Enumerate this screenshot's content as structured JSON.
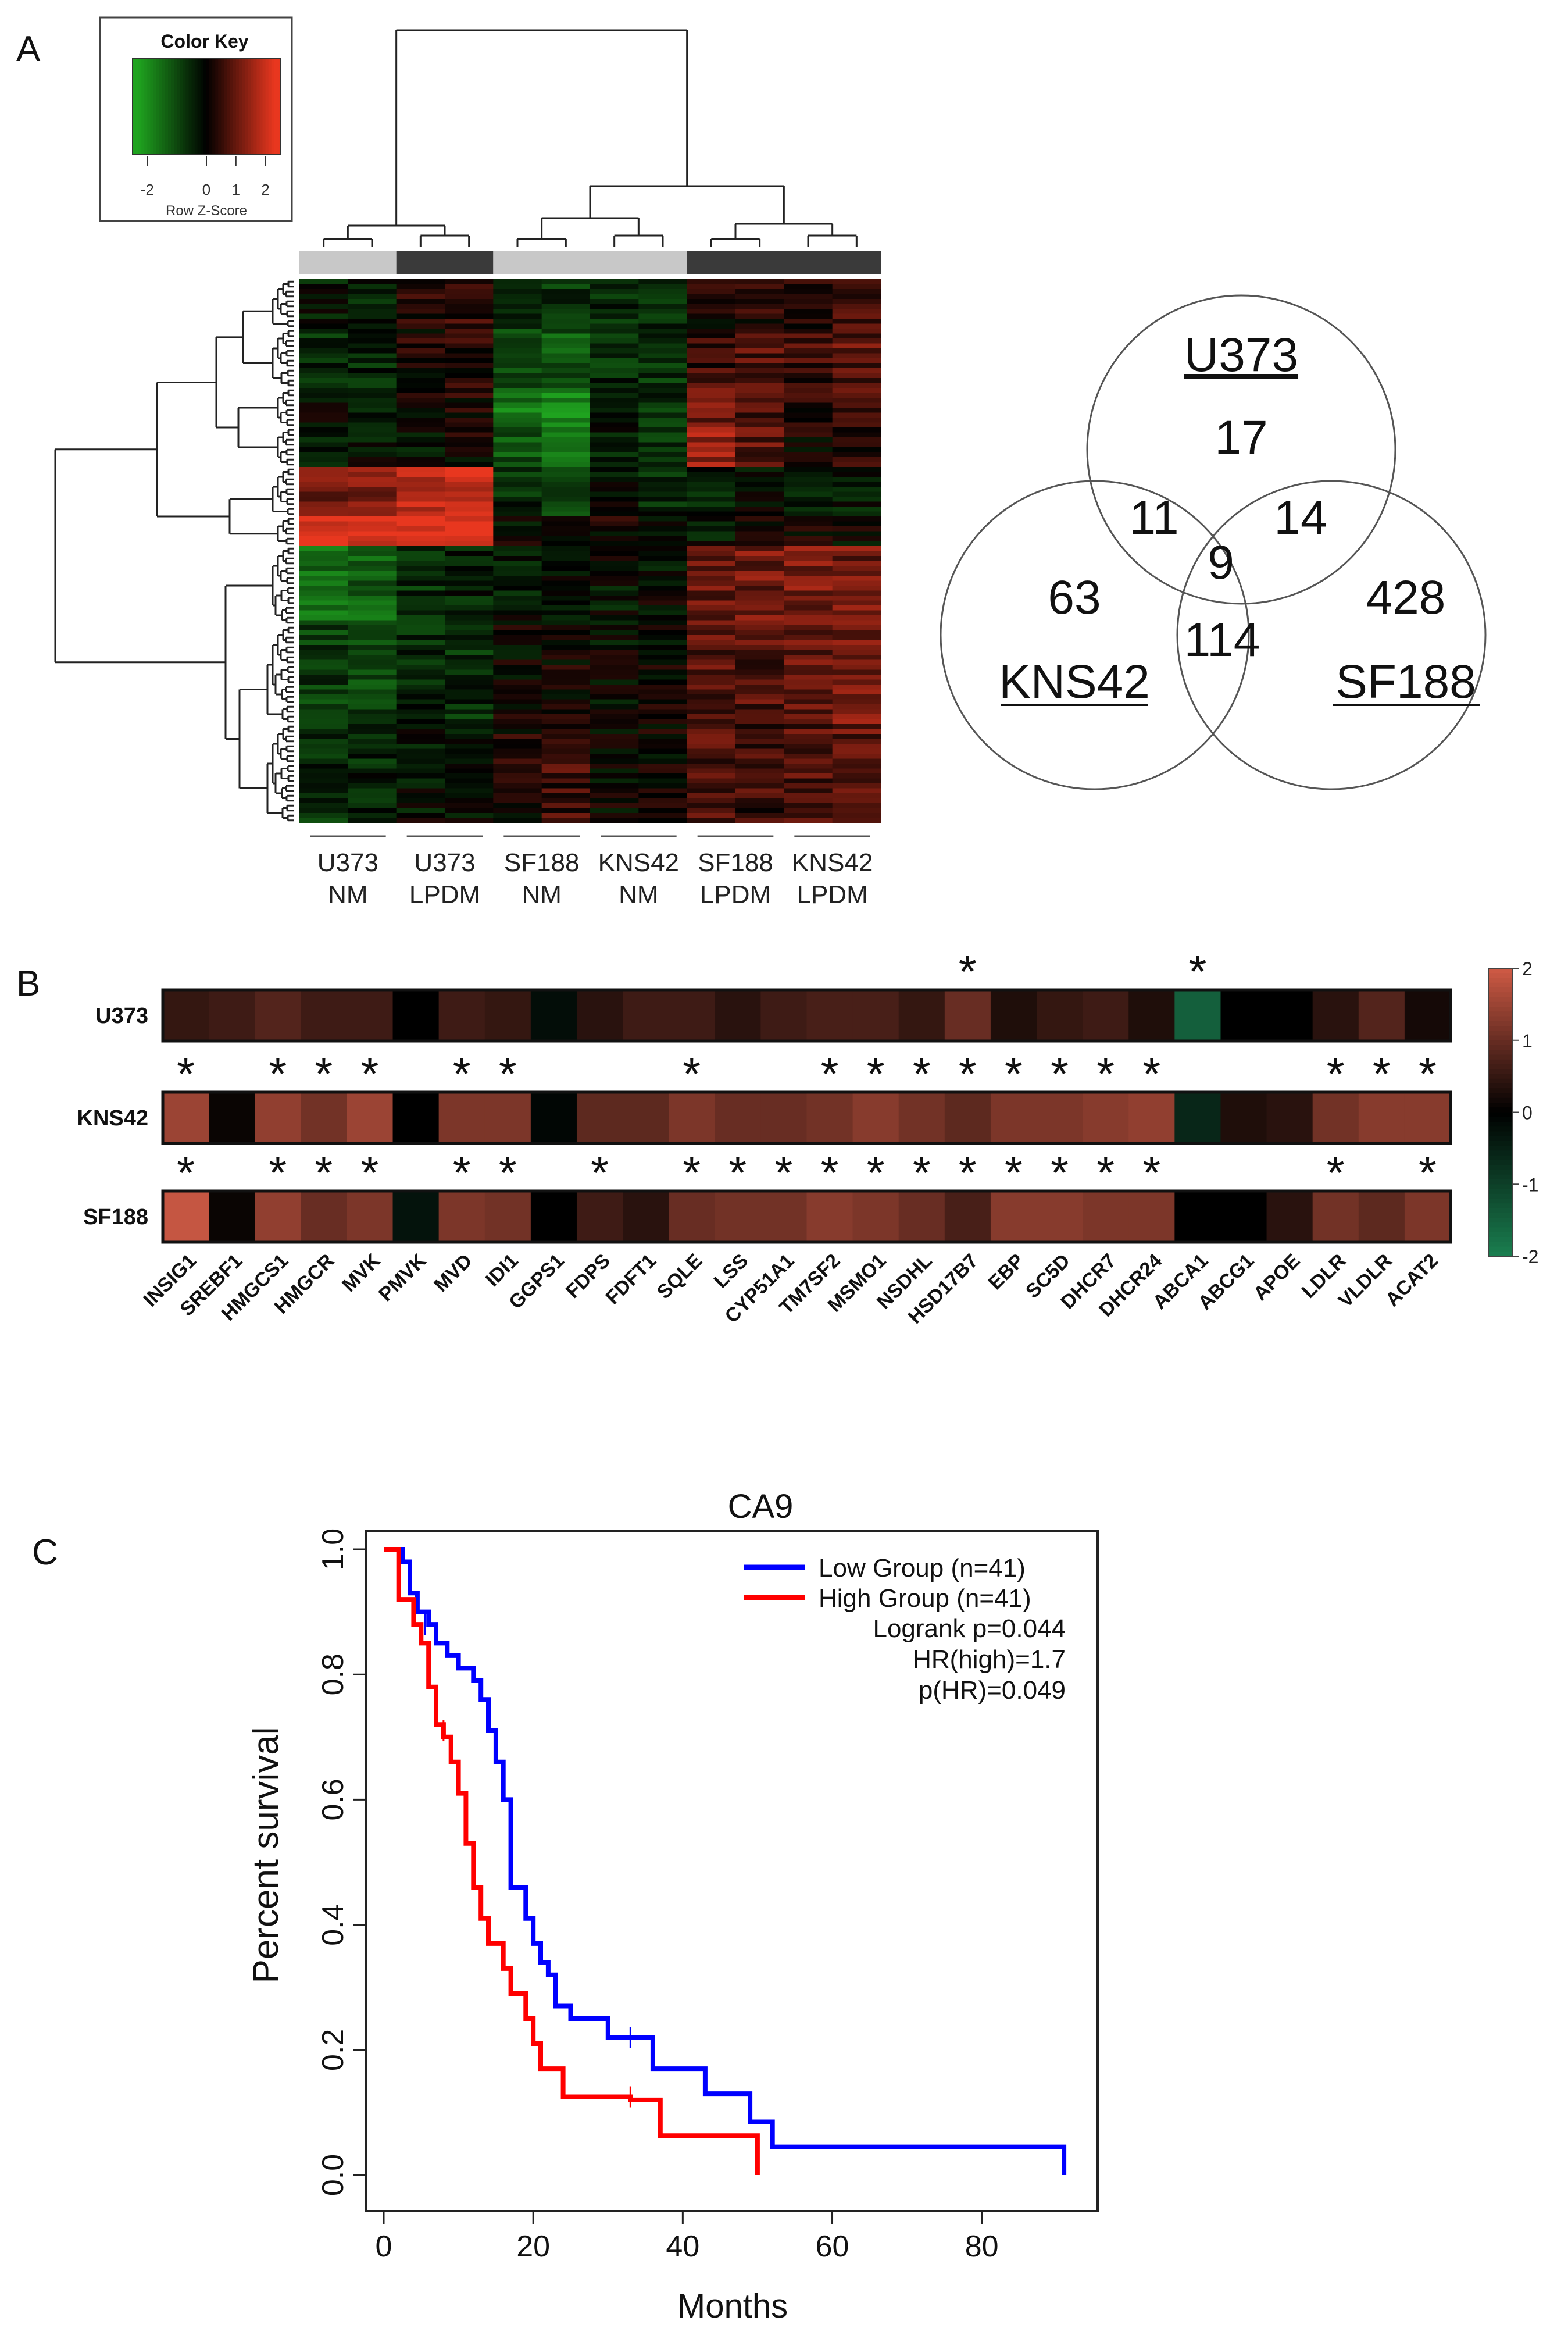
{
  "figure": {
    "panel_labels": {
      "a": "A",
      "b": "B",
      "c": "C"
    }
  },
  "colors": {
    "green": "#1fa31f",
    "black": "#000000",
    "red": "#e8371f",
    "mapLow": "#1a7f50",
    "mapMid": "#000000",
    "mapHigh": "#cf5a45",
    "lowGroup": "#0000ff",
    "highGroup": "#ff0000",
    "barLight": "#c8c8c8",
    "barDark": "#3a3a3a"
  },
  "chart_data": [
    {
      "id": "heatmap",
      "type": "heatmap",
      "title": "",
      "color_key": {
        "title": "Color Key",
        "xlabel": "Row Z-Score",
        "ticks": [
          "-2",
          "0",
          "1",
          "2"
        ],
        "tick_values": [
          -2,
          0,
          1,
          2
        ],
        "range": [
          -2.5,
          2.5
        ]
      },
      "columns": 12,
      "rows": 110,
      "groups": [
        {
          "line1": "U373",
          "line2": "NM",
          "columns": 2,
          "bar": "light"
        },
        {
          "line1": "U373",
          "line2": "LPDM",
          "columns": 2,
          "bar": "dark"
        },
        {
          "line1": "SF188",
          "line2": "NM",
          "columns": 2,
          "bar": "light"
        },
        {
          "line1": "KNS42",
          "line2": "NM",
          "columns": 2,
          "bar": "light"
        },
        {
          "line1": "SF188",
          "line2": "LPDM",
          "columns": 2,
          "bar": "dark"
        },
        {
          "line1": "KNS42",
          "line2": "LPDM",
          "columns": 2,
          "bar": "dark"
        }
      ],
      "row_clusters": [
        {
          "rows": 10,
          "means": [
            -0.3,
            -0.4,
            0.3,
            0.5,
            -0.8,
            -0.7,
            -0.5,
            -0.6,
            0.2,
            0.4,
            0.5,
            0.6
          ]
        },
        {
          "rows": 12,
          "means": [
            -0.6,
            -0.5,
            0.2,
            0.3,
            -1.0,
            -1.2,
            -0.6,
            -0.7,
            0.5,
            0.8,
            0.6,
            0.9
          ]
        },
        {
          "rows": 8,
          "means": [
            -0.2,
            -0.3,
            0.0,
            0.2,
            -1.6,
            -1.8,
            -0.4,
            -0.6,
            1.1,
            0.7,
            0.3,
            0.6
          ]
        },
        {
          "rows": 8,
          "means": [
            -0.4,
            -0.2,
            -0.2,
            0.1,
            -1.2,
            -1.4,
            -0.3,
            -0.8,
            1.5,
            0.9,
            0.1,
            0.4
          ]
        },
        {
          "rows": 10,
          "means": [
            1.1,
            1.3,
            1.8,
            2.0,
            -0.6,
            -0.8,
            -0.3,
            -0.5,
            -0.4,
            -0.2,
            -0.5,
            -0.3
          ]
        },
        {
          "rows": 6,
          "means": [
            2.2,
            2.3,
            2.4,
            2.5,
            -0.1,
            0.0,
            0.1,
            -0.2,
            -0.2,
            0.0,
            0.1,
            0.0
          ]
        },
        {
          "rows": 16,
          "means": [
            -1.5,
            -1.3,
            -0.6,
            -0.4,
            -0.3,
            -0.2,
            -0.2,
            -0.1,
            1.0,
            1.1,
            1.2,
            1.1
          ]
        },
        {
          "rows": 20,
          "means": [
            -0.8,
            -0.9,
            -0.5,
            -0.6,
            0.0,
            0.1,
            -0.1,
            0.0,
            0.9,
            0.8,
            1.0,
            1.2
          ]
        },
        {
          "rows": 20,
          "means": [
            -0.6,
            -0.5,
            -0.2,
            -0.3,
            0.2,
            0.6,
            0.0,
            0.1,
            0.7,
            0.6,
            0.8,
            0.9
          ]
        }
      ]
    },
    {
      "id": "venn",
      "type": "venn",
      "sets": [
        {
          "name": "U373",
          "only": 17
        },
        {
          "name": "KNS42",
          "only": 63
        },
        {
          "name": "SF188",
          "only": 428
        }
      ],
      "intersections": [
        {
          "sets": [
            "U373",
            "KNS42"
          ],
          "value": 11
        },
        {
          "sets": [
            "U373",
            "SF188"
          ],
          "value": 14
        },
        {
          "sets": [
            "U373",
            "KNS42",
            "SF188"
          ],
          "value": 9
        },
        {
          "sets": [
            "KNS42",
            "SF188"
          ],
          "value": 114
        }
      ]
    },
    {
      "id": "expression",
      "type": "heatmap",
      "value_range": [
        -2,
        2
      ],
      "legend_ticks": [
        "2",
        "1",
        "0",
        "-1",
        "-2"
      ],
      "legend_values": [
        2,
        1,
        0,
        -1,
        -2
      ],
      "genes": [
        "INSIG1",
        "SREBF1",
        "HMGCS1",
        "HMGCR",
        "MVK",
        "PMVK",
        "MVD",
        "IDI1",
        "GGPS1",
        "FDPS",
        "FDFT1",
        "SQLE",
        "LSS",
        "CYP51A1",
        "TM7SF2",
        "MSMO1",
        "NSDHL",
        "HSD17B7",
        "EBP",
        "SC5D",
        "DHCR7",
        "DHCR24",
        "ABCA1",
        "ABCG1",
        "APOE",
        "LDLR",
        "VLDLR",
        "ACAT2"
      ],
      "rows": [
        {
          "name": "U373",
          "values": [
            0.5,
            0.6,
            0.8,
            0.6,
            0.6,
            0.0,
            0.6,
            0.5,
            -0.2,
            0.4,
            0.6,
            0.6,
            0.4,
            0.6,
            0.7,
            0.7,
            0.5,
            1.0,
            0.3,
            0.5,
            0.6,
            0.3,
            -1.5,
            0.0,
            0.0,
            0.4,
            0.8,
            0.2
          ],
          "sig": [
            18,
            23
          ]
        },
        {
          "name": "KNS42",
          "values": [
            1.5,
            0.1,
            1.4,
            1.1,
            1.5,
            0.0,
            1.2,
            1.2,
            -0.1,
            0.9,
            0.9,
            1.2,
            1.0,
            1.0,
            1.1,
            1.3,
            1.1,
            0.9,
            1.2,
            1.2,
            1.3,
            1.4,
            -0.6,
            0.3,
            0.4,
            1.1,
            1.3,
            1.3
          ],
          "sig": [
            1,
            3,
            4,
            5,
            7,
            8,
            12,
            15,
            16,
            17,
            18,
            19,
            20,
            21,
            22,
            26,
            27,
            28
          ]
        },
        {
          "name": "SF188",
          "values": [
            1.9,
            0.1,
            1.4,
            1.0,
            1.2,
            -0.3,
            1.2,
            1.1,
            0.0,
            0.6,
            0.4,
            1.0,
            1.1,
            1.1,
            1.3,
            1.2,
            1.0,
            0.7,
            1.3,
            1.3,
            1.2,
            1.2,
            0.0,
            0.0,
            0.4,
            1.1,
            0.9,
            1.2
          ],
          "sig": [
            1,
            3,
            4,
            5,
            7,
            8,
            10,
            12,
            13,
            14,
            15,
            16,
            17,
            18,
            19,
            20,
            21,
            22,
            26,
            28
          ]
        }
      ],
      "star": "*"
    },
    {
      "id": "survival",
      "type": "line",
      "title": "CA9",
      "xlabel": "Months",
      "ylabel": "Percent survival",
      "xlim": [
        0,
        92
      ],
      "ylim": [
        0,
        1.05
      ],
      "xticks": [
        "0",
        "20",
        "40",
        "60",
        "80"
      ],
      "xtick_values": [
        0,
        20,
        40,
        60,
        80
      ],
      "yticks": [
        "0.0",
        "0.2",
        "0.4",
        "0.6",
        "0.8",
        "1.0"
      ],
      "ytick_values": [
        0,
        0.2,
        0.4,
        0.6,
        0.8,
        1.0
      ],
      "legend": {
        "low": "Low Group (n=41)",
        "high": "High Group (n=41)",
        "stats": [
          "Logrank p=0.044",
          "HR(high)=1.7",
          "p(HR)=0.049"
        ],
        "position": "top-right"
      },
      "series": [
        {
          "name": "Low Group (n=41)",
          "color_key": "lowGroup",
          "steps": [
            [
              0,
              1.0
            ],
            [
              2.5,
              1.0
            ],
            [
              2.5,
              0.98
            ],
            [
              3.5,
              0.98
            ],
            [
              3.5,
              0.93
            ],
            [
              4.5,
              0.93
            ],
            [
              4.5,
              0.9
            ],
            [
              6,
              0.9
            ],
            [
              6,
              0.88
            ],
            [
              7,
              0.88
            ],
            [
              7,
              0.85
            ],
            [
              8.5,
              0.85
            ],
            [
              8.5,
              0.83
            ],
            [
              10,
              0.83
            ],
            [
              10,
              0.81
            ],
            [
              12,
              0.81
            ],
            [
              12,
              0.79
            ],
            [
              13,
              0.79
            ],
            [
              13,
              0.76
            ],
            [
              14,
              0.76
            ],
            [
              14,
              0.71
            ],
            [
              15,
              0.71
            ],
            [
              15,
              0.66
            ],
            [
              16,
              0.66
            ],
            [
              16,
              0.6
            ],
            [
              17,
              0.6
            ],
            [
              17,
              0.46
            ],
            [
              19,
              0.46
            ],
            [
              19,
              0.41
            ],
            [
              20,
              0.41
            ],
            [
              20,
              0.37
            ],
            [
              21,
              0.37
            ],
            [
              21,
              0.34
            ],
            [
              22,
              0.34
            ],
            [
              22,
              0.32
            ],
            [
              23,
              0.32
            ],
            [
              23,
              0.27
            ],
            [
              25,
              0.27
            ],
            [
              25,
              0.25
            ],
            [
              30,
              0.25
            ],
            [
              30,
              0.22
            ],
            [
              36,
              0.22
            ],
            [
              36,
              0.17
            ],
            [
              43,
              0.17
            ],
            [
              43,
              0.13
            ],
            [
              49,
              0.13
            ],
            [
              49,
              0.085
            ],
            [
              52,
              0.085
            ],
            [
              52,
              0.045
            ],
            [
              91,
              0.045
            ],
            [
              91,
              0.0
            ]
          ],
          "censor": [
            [
              5.5,
              0.88
            ],
            [
              33,
              0.22
            ]
          ]
        },
        {
          "name": "High Group (n=41)",
          "color_key": "highGroup",
          "steps": [
            [
              0,
              1.0
            ],
            [
              2,
              1.0
            ],
            [
              2,
              0.92
            ],
            [
              4,
              0.92
            ],
            [
              4,
              0.88
            ],
            [
              5,
              0.88
            ],
            [
              5,
              0.85
            ],
            [
              6,
              0.85
            ],
            [
              6,
              0.78
            ],
            [
              7,
              0.78
            ],
            [
              7,
              0.72
            ],
            [
              8,
              0.72
            ],
            [
              8,
              0.7
            ],
            [
              9,
              0.7
            ],
            [
              9,
              0.66
            ],
            [
              10,
              0.66
            ],
            [
              10,
              0.61
            ],
            [
              11,
              0.61
            ],
            [
              11,
              0.53
            ],
            [
              12,
              0.53
            ],
            [
              12,
              0.46
            ],
            [
              13,
              0.46
            ],
            [
              13,
              0.41
            ],
            [
              14,
              0.41
            ],
            [
              14,
              0.37
            ],
            [
              16,
              0.37
            ],
            [
              16,
              0.33
            ],
            [
              17,
              0.33
            ],
            [
              17,
              0.29
            ],
            [
              19,
              0.29
            ],
            [
              19,
              0.25
            ],
            [
              20,
              0.25
            ],
            [
              20,
              0.21
            ],
            [
              21,
              0.21
            ],
            [
              21,
              0.17
            ],
            [
              24,
              0.17
            ],
            [
              24,
              0.125
            ],
            [
              33,
              0.125
            ],
            [
              33,
              0.12
            ],
            [
              37,
              0.12
            ],
            [
              37,
              0.063
            ],
            [
              50,
              0.063
            ],
            [
              50,
              0.0
            ]
          ],
          "censor": [
            [
              8,
              0.71
            ],
            [
              33,
              0.125
            ]
          ]
        }
      ]
    }
  ]
}
